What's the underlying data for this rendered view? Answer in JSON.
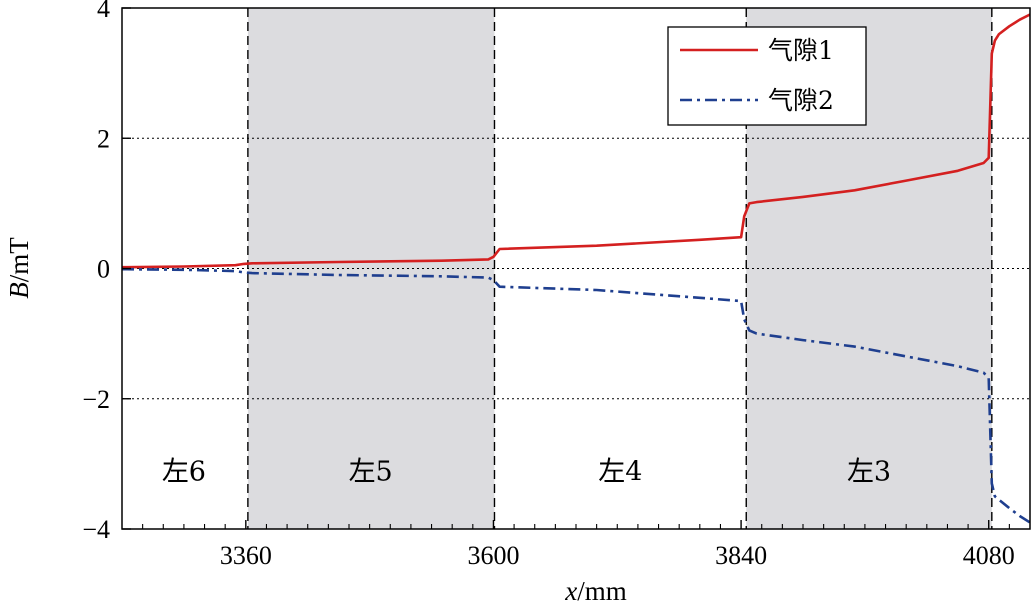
{
  "chart_data": {
    "type": "line",
    "xlabel_var": "x",
    "xlabel_unit": "/mm",
    "ylabel_var": "B",
    "ylabel_unit": "/mT",
    "xlim": [
      3240,
      4120
    ],
    "ylim": [
      -4,
      4
    ],
    "x_ticks": [
      3360,
      3600,
      3840,
      4080
    ],
    "x_tick_labels": [
      "3360",
      "3600",
      "3840",
      "4080"
    ],
    "y_ticks": [
      4,
      2,
      0,
      -2,
      -4
    ],
    "y_tick_labels": [
      "4",
      "2",
      "0",
      "−2",
      "−4"
    ],
    "y_gridlines": [
      2,
      0,
      -2
    ],
    "boundaries": [
      3362,
      3601,
      3845,
      4083
    ],
    "shaded_regions": [
      [
        3362,
        3601
      ],
      [
        3845,
        4083
      ]
    ],
    "regions": [
      {
        "label": "左6",
        "x_center": 3300
      },
      {
        "label": "左5",
        "x_center": 3481
      },
      {
        "label": "左4",
        "x_center": 3723
      },
      {
        "label": "左3",
        "x_center": 3964
      }
    ],
    "legend_position": "top-right",
    "series": [
      {
        "name": "气隙1",
        "color": "#d42020",
        "dash": "solid",
        "x": [
          3240,
          3300,
          3350,
          3358,
          3366,
          3450,
          3550,
          3595,
          3600,
          3606,
          3700,
          3800,
          3840,
          3843,
          3848,
          3855,
          3900,
          3950,
          4000,
          4050,
          4075,
          4080,
          4083,
          4086,
          4090,
          4100,
          4110,
          4120
        ],
        "y": [
          0.02,
          0.03,
          0.05,
          0.07,
          0.08,
          0.1,
          0.12,
          0.14,
          0.18,
          0.3,
          0.35,
          0.44,
          0.48,
          0.8,
          1.0,
          1.02,
          1.1,
          1.2,
          1.35,
          1.5,
          1.62,
          1.7,
          3.3,
          3.5,
          3.6,
          3.72,
          3.82,
          3.9
        ]
      },
      {
        "name": "气隙2",
        "color": "#1f3f8f",
        "dash": "dashdot",
        "x": [
          3240,
          3300,
          3350,
          3358,
          3366,
          3450,
          3550,
          3595,
          3600,
          3606,
          3700,
          3800,
          3840,
          3843,
          3848,
          3855,
          3900,
          3950,
          4000,
          4050,
          4075,
          4080,
          4083,
          4086,
          4090,
          4100,
          4110,
          4120
        ],
        "y": [
          -0.01,
          -0.02,
          -0.04,
          -0.06,
          -0.07,
          -0.1,
          -0.12,
          -0.14,
          -0.18,
          -0.28,
          -0.33,
          -0.45,
          -0.5,
          -0.78,
          -0.95,
          -1.0,
          -1.1,
          -1.2,
          -1.35,
          -1.5,
          -1.6,
          -1.68,
          -3.3,
          -3.5,
          -3.55,
          -3.68,
          -3.8,
          -3.9
        ]
      }
    ]
  }
}
